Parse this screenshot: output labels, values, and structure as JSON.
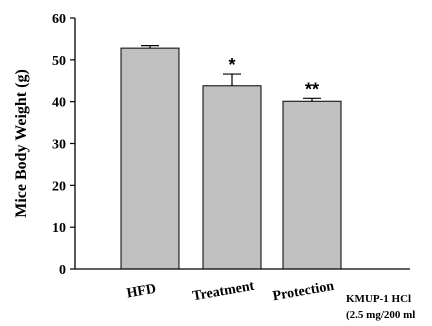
{
  "chart_data": {
    "type": "bar",
    "ylabel": "Mice Body Weight (g)",
    "xlabel": "",
    "ylim": [
      0,
      60
    ],
    "yticks": [
      "0",
      "10",
      "20",
      "30",
      "40",
      "50",
      "60"
    ],
    "grid": false,
    "categories": [
      "HFD",
      "Treatment",
      "Protection"
    ],
    "values": [
      52.8,
      43.8,
      40.1
    ],
    "errors": [
      0.6,
      2.8,
      0.7
    ],
    "significance": [
      "",
      "*",
      "**"
    ],
    "bar_color": "#c0c0c0",
    "annotation": [
      "KMUP-1 HCl",
      "(2.5 mg/200 ml"
    ]
  }
}
